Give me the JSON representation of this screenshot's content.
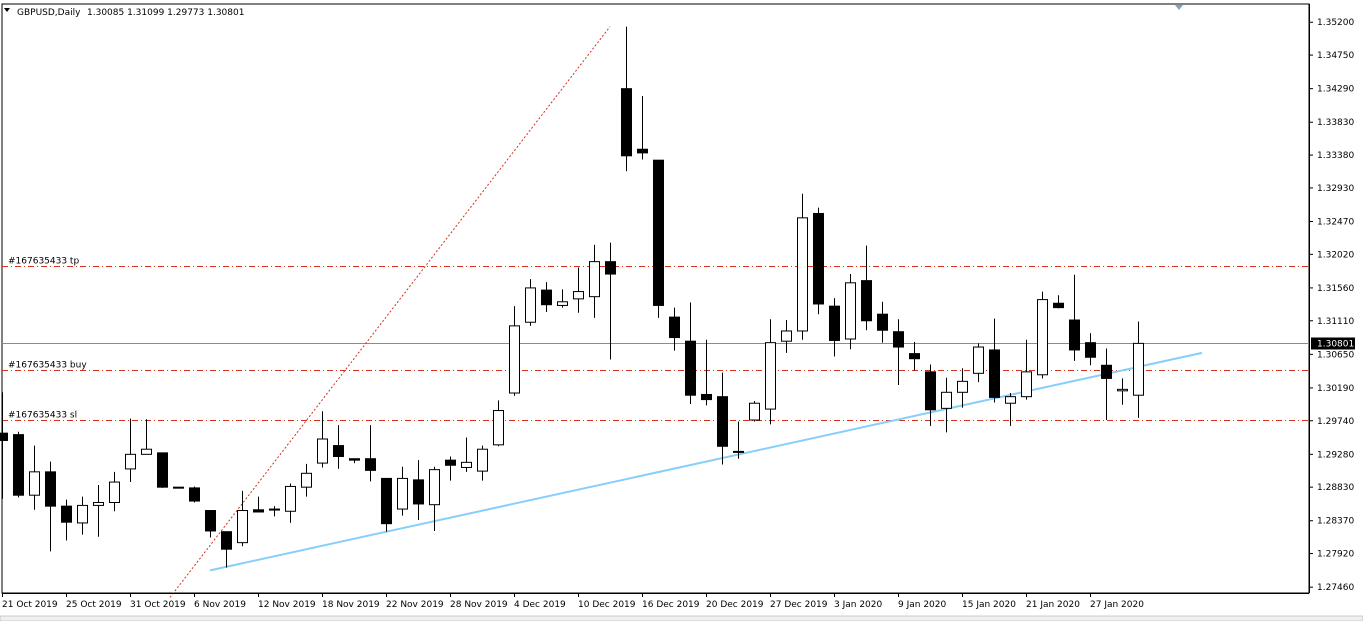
{
  "header": {
    "symbol_label": "GBPUSD,Daily",
    "ohlc_text": "1.30085 1.31099 1.29773 1.30801"
  },
  "colors": {
    "background": "#ffffff",
    "bull_fill": "#ffffff",
    "bear_fill": "#000000",
    "candle_stroke": "#000000",
    "trendline": "#87cefa",
    "order_line": "#d2321e",
    "price_line": "#7890a0"
  },
  "chart_data": {
    "type": "candlestick",
    "title": "GBPUSD,Daily",
    "ylim": [
      1.2738,
      1.3545
    ],
    "y_ticks": [
      "1.35200",
      "1.34750",
      "1.34290",
      "1.33830",
      "1.33380",
      "1.32930",
      "1.32470",
      "1.32020",
      "1.31560",
      "1.31110",
      "1.30650",
      "1.30190",
      "1.29740",
      "1.29280",
      "1.28830",
      "1.28370",
      "1.27920",
      "1.27460"
    ],
    "x_tick_labels": [
      "21 Oct 2019",
      "25 Oct 2019",
      "31 Oct 2019",
      "6 Nov 2019",
      "12 Nov 2019",
      "18 Nov 2019",
      "22 Nov 2019",
      "28 Nov 2019",
      "4 Dec 2019",
      "10 Dec 2019",
      "16 Dec 2019",
      "20 Dec 2019",
      "27 Dec 2019",
      "3 Jan 2020",
      "9 Jan 2020",
      "15 Jan 2020",
      "21 Jan 2020",
      "27 Jan 2020"
    ],
    "x_tick_index": [
      0,
      4,
      8,
      12,
      16,
      20,
      24,
      28,
      32,
      36,
      40,
      44,
      48,
      52,
      56,
      60,
      64,
      68
    ],
    "candles": [
      {
        "o": 1.2957,
        "h": 1.3013,
        "l": 1.2867,
        "c": 1.2947
      },
      {
        "o": 1.2955,
        "h": 1.2959,
        "l": 1.2869,
        "c": 1.2872
      },
      {
        "o": 1.2872,
        "h": 1.294,
        "l": 1.2852,
        "c": 1.2904
      },
      {
        "o": 1.2904,
        "h": 1.2918,
        "l": 1.2795,
        "c": 1.2857
      },
      {
        "o": 1.2857,
        "h": 1.2866,
        "l": 1.281,
        "c": 1.2835
      },
      {
        "o": 1.2834,
        "h": 1.287,
        "l": 1.2818,
        "c": 1.2858
      },
      {
        "o": 1.2858,
        "h": 1.2886,
        "l": 1.2815,
        "c": 1.2862
      },
      {
        "o": 1.2862,
        "h": 1.2904,
        "l": 1.285,
        "c": 1.289
      },
      {
        "o": 1.2908,
        "h": 1.2977,
        "l": 1.289,
        "c": 1.2928
      },
      {
        "o": 1.2928,
        "h": 1.2976,
        "l": 1.2928,
        "c": 1.2935
      },
      {
        "o": 1.293,
        "h": 1.293,
        "l": 1.2882,
        "c": 1.2883
      },
      {
        "o": 1.2883,
        "h": 1.2883,
        "l": 1.2883,
        "c": 1.2883
      },
      {
        "o": 1.2882,
        "h": 1.2884,
        "l": 1.2862,
        "c": 1.2864
      },
      {
        "o": 1.2851,
        "h": 1.2851,
        "l": 1.2814,
        "c": 1.2823
      },
      {
        "o": 1.2822,
        "h": 1.2822,
        "l": 1.2773,
        "c": 1.2798
      },
      {
        "o": 1.2807,
        "h": 1.2878,
        "l": 1.2802,
        "c": 1.2851
      },
      {
        "o": 1.2852,
        "h": 1.287,
        "l": 1.285,
        "c": 1.2849
      },
      {
        "o": 1.2853,
        "h": 1.2857,
        "l": 1.2843,
        "c": 1.2853
      },
      {
        "o": 1.285,
        "h": 1.2888,
        "l": 1.2834,
        "c": 1.2884
      },
      {
        "o": 1.2883,
        "h": 1.2915,
        "l": 1.287,
        "c": 1.2902
      },
      {
        "o": 1.2916,
        "h": 1.2987,
        "l": 1.291,
        "c": 1.2949
      },
      {
        "o": 1.294,
        "h": 1.2968,
        "l": 1.2908,
        "c": 1.2925
      },
      {
        "o": 1.2922,
        "h": 1.2922,
        "l": 1.2916,
        "c": 1.292
      },
      {
        "o": 1.2922,
        "h": 1.2968,
        "l": 1.2891,
        "c": 1.2906
      },
      {
        "o": 1.2895,
        "h": 1.2895,
        "l": 1.2822,
        "c": 1.2833
      },
      {
        "o": 1.2853,
        "h": 1.2911,
        "l": 1.2844,
        "c": 1.2895
      },
      {
        "o": 1.2893,
        "h": 1.292,
        "l": 1.2838,
        "c": 1.286
      },
      {
        "o": 1.2859,
        "h": 1.2911,
        "l": 1.2823,
        "c": 1.2907
      },
      {
        "o": 1.292,
        "h": 1.2925,
        "l": 1.2892,
        "c": 1.2913
      },
      {
        "o": 1.291,
        "h": 1.2951,
        "l": 1.2904,
        "c": 1.2917
      },
      {
        "o": 1.2905,
        "h": 1.294,
        "l": 1.2892,
        "c": 1.2935
      },
      {
        "o": 1.2941,
        "h": 1.3002,
        "l": 1.2939,
        "c": 1.2988
      },
      {
        "o": 1.3012,
        "h": 1.3131,
        "l": 1.3008,
        "c": 1.3104
      },
      {
        "o": 1.3109,
        "h": 1.3168,
        "l": 1.3104,
        "c": 1.3156
      },
      {
        "o": 1.3153,
        "h": 1.3164,
        "l": 1.3123,
        "c": 1.3133
      },
      {
        "o": 1.3132,
        "h": 1.3154,
        "l": 1.3129,
        "c": 1.3137
      },
      {
        "o": 1.3141,
        "h": 1.3184,
        "l": 1.3122,
        "c": 1.3151
      },
      {
        "o": 1.3144,
        "h": 1.3215,
        "l": 1.3115,
        "c": 1.3192
      },
      {
        "o": 1.3192,
        "h": 1.3218,
        "l": 1.3058,
        "c": 1.3175
      },
      {
        "o": 1.3429,
        "h": 1.3514,
        "l": 1.3316,
        "c": 1.3337
      },
      {
        "o": 1.3346,
        "h": 1.3419,
        "l": 1.3332,
        "c": 1.3341
      },
      {
        "o": 1.3331,
        "h": 1.3331,
        "l": 1.3115,
        "c": 1.3132
      },
      {
        "o": 1.3116,
        "h": 1.3129,
        "l": 1.307,
        "c": 1.3088
      },
      {
        "o": 1.3083,
        "h": 1.3136,
        "l": 1.2997,
        "c": 1.3009
      },
      {
        "o": 1.301,
        "h": 1.3085,
        "l": 1.2995,
        "c": 1.3003
      },
      {
        "o": 1.3007,
        "h": 1.304,
        "l": 1.2914,
        "c": 1.2939
      },
      {
        "o": 1.2932,
        "h": 1.2973,
        "l": 1.2922,
        "c": 1.2931
      },
      {
        "o": 1.2975,
        "h": 1.3001,
        "l": 1.2973,
        "c": 1.2998
      },
      {
        "o": 1.299,
        "h": 1.3113,
        "l": 1.2969,
        "c": 1.3081
      },
      {
        "o": 1.3083,
        "h": 1.3112,
        "l": 1.3067,
        "c": 1.3097
      },
      {
        "o": 1.3097,
        "h": 1.3285,
        "l": 1.3085,
        "c": 1.3252
      },
      {
        "o": 1.3258,
        "h": 1.3266,
        "l": 1.312,
        "c": 1.3134
      },
      {
        "o": 1.3131,
        "h": 1.3142,
        "l": 1.3062,
        "c": 1.3084
      },
      {
        "o": 1.3086,
        "h": 1.3175,
        "l": 1.3072,
        "c": 1.3163
      },
      {
        "o": 1.3166,
        "h": 1.3214,
        "l": 1.3098,
        "c": 1.3111
      },
      {
        "o": 1.312,
        "h": 1.3137,
        "l": 1.3081,
        "c": 1.3098
      },
      {
        "o": 1.3096,
        "h": 1.3113,
        "l": 1.3023,
        "c": 1.3075
      },
      {
        "o": 1.3066,
        "h": 1.3082,
        "l": 1.3043,
        "c": 1.3059
      },
      {
        "o": 1.3041,
        "h": 1.3051,
        "l": 1.2967,
        "c": 1.2989
      },
      {
        "o": 1.2991,
        "h": 1.3033,
        "l": 1.2958,
        "c": 1.3013
      },
      {
        "o": 1.3013,
        "h": 1.3046,
        "l": 1.2992,
        "c": 1.3028
      },
      {
        "o": 1.3039,
        "h": 1.308,
        "l": 1.3027,
        "c": 1.3075
      },
      {
        "o": 1.3071,
        "h": 1.3114,
        "l": 1.2999,
        "c": 1.3006
      },
      {
        "o": 1.2998,
        "h": 1.3012,
        "l": 1.2967,
        "c": 1.3007
      },
      {
        "o": 1.3007,
        "h": 1.3085,
        "l": 1.3003,
        "c": 1.3041
      },
      {
        "o": 1.3037,
        "h": 1.3151,
        "l": 1.3032,
        "c": 1.314
      },
      {
        "o": 1.3135,
        "h": 1.3146,
        "l": 1.3128,
        "c": 1.3129
      },
      {
        "o": 1.3112,
        "h": 1.3174,
        "l": 1.3056,
        "c": 1.3071
      },
      {
        "o": 1.3081,
        "h": 1.3094,
        "l": 1.305,
        "c": 1.3061
      },
      {
        "o": 1.305,
        "h": 1.3073,
        "l": 1.2975,
        "c": 1.3032
      },
      {
        "o": 1.3015,
        "h": 1.3032,
        "l": 1.2996,
        "c": 1.3017
      },
      {
        "o": 1.3009,
        "h": 1.311,
        "l": 1.2978,
        "c": 1.308
      }
    ],
    "current_price_label": "1.30801",
    "current_price": 1.30801,
    "order_levels": [
      {
        "label": "#167635433 tp",
        "price": 1.3186
      },
      {
        "label": "#167635433 buy",
        "price": 1.3044
      },
      {
        "label": "#167635433 sl",
        "price": 1.2975
      }
    ],
    "trendline": {
      "from": {
        "index": 13,
        "price": 1.2769
      },
      "to": {
        "index": 75,
        "price": 1.3067
      }
    },
    "connector": {
      "from": {
        "index": 10.5,
        "price": 1.2732
      },
      "to": {
        "index": 38,
        "price": 1.3514
      }
    }
  }
}
